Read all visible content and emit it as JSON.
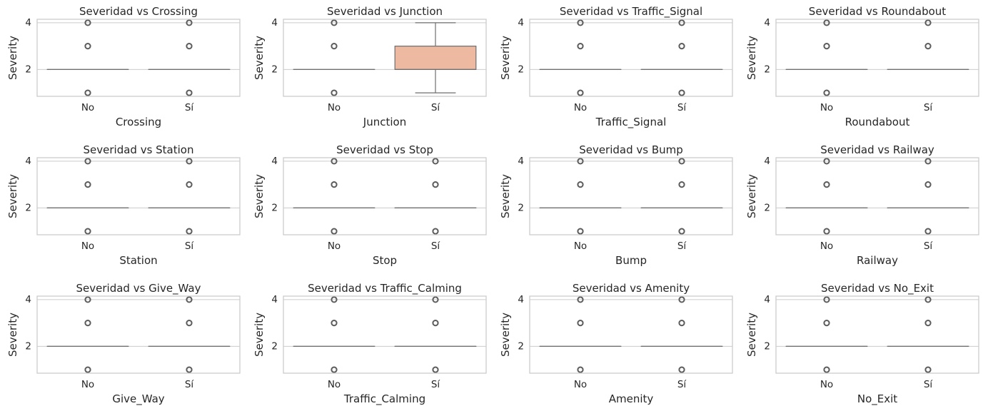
{
  "chart_data": [
    {
      "type": "box",
      "title": "Severidad vs Crossing",
      "xlabel": "Crossing",
      "ylabel": "Severity",
      "categories": [
        "No",
        "Sí"
      ],
      "yticks": [
        "2",
        "4"
      ],
      "ylim": [
        0.85,
        4.15
      ],
      "boxes": [
        {
          "median": 2,
          "q1": 2,
          "q3": 2,
          "whisker_low": 2,
          "whisker_high": 2,
          "outliers": [
            1,
            3,
            4
          ]
        },
        {
          "median": 2,
          "q1": 2,
          "q3": 2,
          "whisker_low": 2,
          "whisker_high": 2,
          "outliers": [
            1,
            3,
            4
          ]
        }
      ]
    },
    {
      "type": "box",
      "title": "Severidad vs Junction",
      "xlabel": "Junction",
      "ylabel": "Severity",
      "categories": [
        "No",
        "Sí"
      ],
      "yticks": [
        "2",
        "4"
      ],
      "ylim": [
        0.85,
        4.15
      ],
      "boxes": [
        {
          "median": 2,
          "q1": 2,
          "q3": 2,
          "whisker_low": 2,
          "whisker_high": 2,
          "outliers": [
            1,
            3,
            4
          ]
        },
        {
          "median": 2,
          "q1": 2,
          "q3": 3,
          "whisker_low": 1,
          "whisker_high": 4,
          "outliers": []
        }
      ]
    },
    {
      "type": "box",
      "title": "Severidad vs Traffic_Signal",
      "xlabel": "Traffic_Signal",
      "ylabel": "Severity",
      "categories": [
        "No",
        "Sí"
      ],
      "yticks": [
        "2",
        "4"
      ],
      "ylim": [
        0.85,
        4.15
      ],
      "boxes": [
        {
          "median": 2,
          "q1": 2,
          "q3": 2,
          "whisker_low": 2,
          "whisker_high": 2,
          "outliers": [
            1,
            3,
            4
          ]
        },
        {
          "median": 2,
          "q1": 2,
          "q3": 2,
          "whisker_low": 2,
          "whisker_high": 2,
          "outliers": [
            1,
            3,
            4
          ]
        }
      ]
    },
    {
      "type": "box",
      "title": "Severidad vs Roundabout",
      "xlabel": "Roundabout",
      "ylabel": "Severity",
      "categories": [
        "No",
        "Sí"
      ],
      "yticks": [
        "2",
        "4"
      ],
      "ylim": [
        0.85,
        4.15
      ],
      "boxes": [
        {
          "median": 2,
          "q1": 2,
          "q3": 2,
          "whisker_low": 2,
          "whisker_high": 2,
          "outliers": [
            1,
            3,
            4
          ]
        },
        {
          "median": 2,
          "q1": 2,
          "q3": 2,
          "whisker_low": 2,
          "whisker_high": 2,
          "outliers": [
            3,
            4
          ]
        }
      ]
    },
    {
      "type": "box",
      "title": "Severidad vs Station",
      "xlabel": "Station",
      "ylabel": "Severity",
      "categories": [
        "No",
        "Sí"
      ],
      "yticks": [
        "2",
        "4"
      ],
      "ylim": [
        0.85,
        4.15
      ],
      "boxes": [
        {
          "median": 2,
          "q1": 2,
          "q3": 2,
          "whisker_low": 2,
          "whisker_high": 2,
          "outliers": [
            1,
            3,
            4
          ]
        },
        {
          "median": 2,
          "q1": 2,
          "q3": 2,
          "whisker_low": 2,
          "whisker_high": 2,
          "outliers": [
            1,
            3,
            4
          ]
        }
      ]
    },
    {
      "type": "box",
      "title": "Severidad vs Stop",
      "xlabel": "Stop",
      "ylabel": "Severity",
      "categories": [
        "No",
        "Sí"
      ],
      "yticks": [
        "2",
        "4"
      ],
      "ylim": [
        0.85,
        4.15
      ],
      "boxes": [
        {
          "median": 2,
          "q1": 2,
          "q3": 2,
          "whisker_low": 2,
          "whisker_high": 2,
          "outliers": [
            1,
            3,
            4
          ]
        },
        {
          "median": 2,
          "q1": 2,
          "q3": 2,
          "whisker_low": 2,
          "whisker_high": 2,
          "outliers": [
            1,
            3,
            4
          ]
        }
      ]
    },
    {
      "type": "box",
      "title": "Severidad vs Bump",
      "xlabel": "Bump",
      "ylabel": "Severity",
      "categories": [
        "No",
        "Sí"
      ],
      "yticks": [
        "2",
        "4"
      ],
      "ylim": [
        0.85,
        4.15
      ],
      "boxes": [
        {
          "median": 2,
          "q1": 2,
          "q3": 2,
          "whisker_low": 2,
          "whisker_high": 2,
          "outliers": [
            1,
            3,
            4
          ]
        },
        {
          "median": 2,
          "q1": 2,
          "q3": 2,
          "whisker_low": 2,
          "whisker_high": 2,
          "outliers": [
            1,
            3,
            4
          ]
        }
      ]
    },
    {
      "type": "box",
      "title": "Severidad vs Railway",
      "xlabel": "Railway",
      "ylabel": "Severity",
      "categories": [
        "No",
        "Sí"
      ],
      "yticks": [
        "2",
        "4"
      ],
      "ylim": [
        0.85,
        4.15
      ],
      "boxes": [
        {
          "median": 2,
          "q1": 2,
          "q3": 2,
          "whisker_low": 2,
          "whisker_high": 2,
          "outliers": [
            1,
            3,
            4
          ]
        },
        {
          "median": 2,
          "q1": 2,
          "q3": 2,
          "whisker_low": 2,
          "whisker_high": 2,
          "outliers": [
            1,
            3,
            4
          ]
        }
      ]
    },
    {
      "type": "box",
      "title": "Severidad vs Give_Way",
      "xlabel": "Give_Way",
      "ylabel": "Severity",
      "categories": [
        "No",
        "Sí"
      ],
      "yticks": [
        "2",
        "4"
      ],
      "ylim": [
        0.85,
        4.15
      ],
      "boxes": [
        {
          "median": 2,
          "q1": 2,
          "q3": 2,
          "whisker_low": 2,
          "whisker_high": 2,
          "outliers": [
            1,
            3,
            4
          ]
        },
        {
          "median": 2,
          "q1": 2,
          "q3": 2,
          "whisker_low": 2,
          "whisker_high": 2,
          "outliers": [
            1,
            3,
            4
          ]
        }
      ]
    },
    {
      "type": "box",
      "title": "Severidad vs Traffic_Calming",
      "xlabel": "Traffic_Calming",
      "ylabel": "Severity",
      "categories": [
        "No",
        "Sí"
      ],
      "yticks": [
        "2",
        "4"
      ],
      "ylim": [
        0.85,
        4.15
      ],
      "boxes": [
        {
          "median": 2,
          "q1": 2,
          "q3": 2,
          "whisker_low": 2,
          "whisker_high": 2,
          "outliers": [
            1,
            3,
            4
          ]
        },
        {
          "median": 2,
          "q1": 2,
          "q3": 2,
          "whisker_low": 2,
          "whisker_high": 2,
          "outliers": [
            1,
            3,
            4
          ]
        }
      ]
    },
    {
      "type": "box",
      "title": "Severidad vs Amenity",
      "xlabel": "Amenity",
      "ylabel": "Severity",
      "categories": [
        "No",
        "Sí"
      ],
      "yticks": [
        "2",
        "4"
      ],
      "ylim": [
        0.85,
        4.15
      ],
      "boxes": [
        {
          "median": 2,
          "q1": 2,
          "q3": 2,
          "whisker_low": 2,
          "whisker_high": 2,
          "outliers": [
            1,
            3,
            4
          ]
        },
        {
          "median": 2,
          "q1": 2,
          "q3": 2,
          "whisker_low": 2,
          "whisker_high": 2,
          "outliers": [
            1,
            3,
            4
          ]
        }
      ]
    },
    {
      "type": "box",
      "title": "Severidad vs No_Exit",
      "xlabel": "No_Exit",
      "ylabel": "Severity",
      "categories": [
        "No",
        "Sí"
      ],
      "yticks": [
        "2",
        "4"
      ],
      "ylim": [
        0.85,
        4.15
      ],
      "boxes": [
        {
          "median": 2,
          "q1": 2,
          "q3": 2,
          "whisker_low": 2,
          "whisker_high": 2,
          "outliers": [
            1,
            3,
            4
          ]
        },
        {
          "median": 2,
          "q1": 2,
          "q3": 2,
          "whisker_low": 2,
          "whisker_high": 2,
          "outliers": [
            1,
            3,
            4
          ]
        }
      ]
    }
  ],
  "colors": {
    "grid": "#cccccc",
    "frame": "#cccccc",
    "box_line": "#6e6e6e",
    "box_fill_flat": "#f4b79d",
    "box_fill_junction": "#edb9a0",
    "outlier_edge": "#5c5c5c",
    "text": "#262626"
  }
}
